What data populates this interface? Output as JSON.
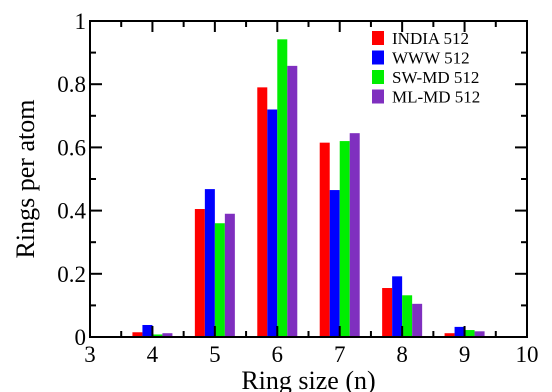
{
  "chart_data": {
    "type": "bar",
    "xlabel": "Ring size (n)",
    "ylabel": "Rings per atom",
    "xlim": [
      3,
      10
    ],
    "ylim": [
      0,
      1
    ],
    "x_ticks": [
      "3",
      "4",
      "5",
      "6",
      "7",
      "8",
      "9",
      "10"
    ],
    "y_ticks": [
      "0",
      "0.2",
      "0.4",
      "0.6",
      "0.8",
      "1"
    ],
    "categories": [
      4,
      5,
      6,
      7,
      8,
      9
    ],
    "grid": false,
    "legend_position": "top-right",
    "series": [
      {
        "name": "INDIA 512",
        "color": "#ff0000",
        "values": [
          0.015,
          0.405,
          0.79,
          0.615,
          0.155,
          0.012
        ]
      },
      {
        "name": "WWW 512",
        "color": "#0000ff",
        "values": [
          0.038,
          0.468,
          0.72,
          0.465,
          0.192,
          0.032
        ]
      },
      {
        "name": "SW-MD 512",
        "color": "#00ee00",
        "values": [
          0.008,
          0.36,
          0.942,
          0.62,
          0.132,
          0.022
        ]
      },
      {
        "name": "ML-MD 512",
        "color": "#7f2fbf",
        "values": [
          0.012,
          0.39,
          0.858,
          0.645,
          0.105,
          0.018
        ]
      }
    ]
  }
}
